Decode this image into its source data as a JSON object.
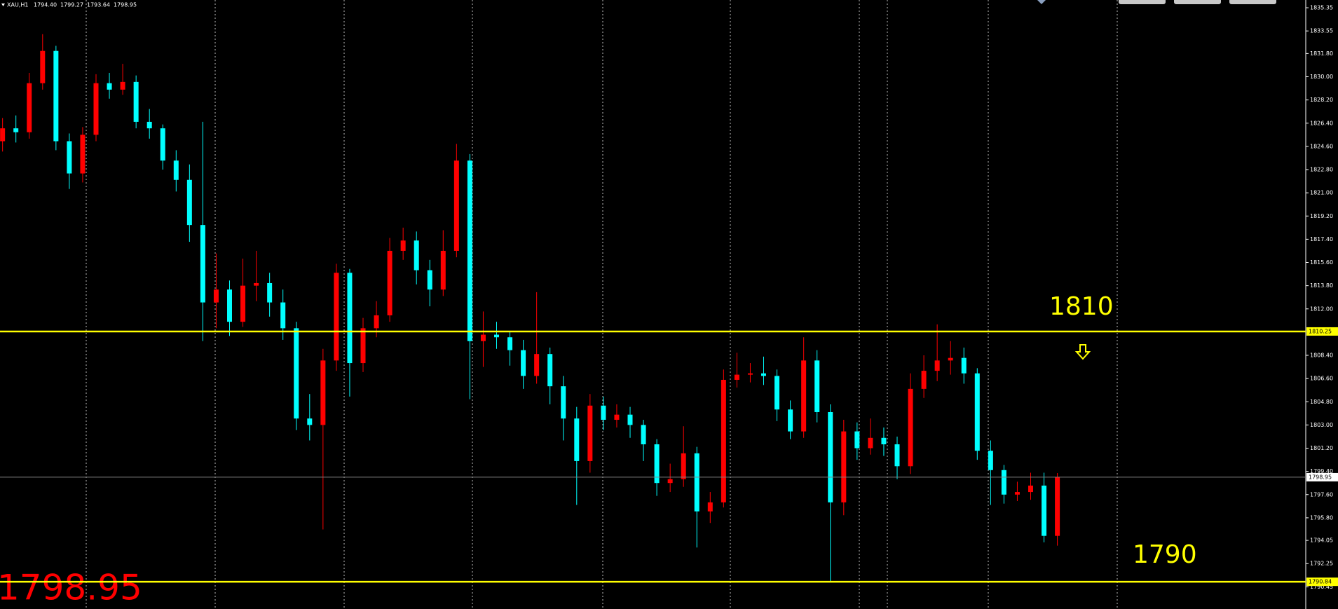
{
  "chart_data": {
    "type": "candlestick",
    "header": {
      "symbol": "XAU,H1",
      "open": "1794.40",
      "high": "1799.27",
      "low": "1793.64",
      "close": "1798.95"
    },
    "up_color": "#ff0000",
    "down_color": "#00ffff",
    "open": [
      1825.0,
      1826.0,
      1825.7,
      1829.5,
      1832.0,
      1825.0,
      1822.5,
      1825.5,
      1829.5,
      1829.0,
      1829.6,
      1826.5,
      1826.0,
      1823.5,
      1822.0,
      1818.5,
      1812.5,
      1813.5,
      1811.0,
      1813.8,
      1814.0,
      1812.5,
      1810.5,
      1803.5,
      1803.0,
      1808.0,
      1814.8,
      1807.8,
      1810.5,
      1811.5,
      1816.5,
      1817.3,
      1815.0,
      1813.5,
      1816.5,
      1823.5,
      1809.5,
      1810.0,
      1809.8,
      1808.8,
      1806.8,
      1808.5,
      1806.0,
      1803.5,
      1800.2,
      1804.5,
      1803.4,
      1803.8,
      1803.0,
      1801.5,
      1798.5,
      1798.8,
      1800.8,
      1796.3,
      1797.0,
      1806.5,
      1806.9,
      1807.0,
      1806.8,
      1804.2,
      1802.5,
      1808.0,
      1804.0,
      1797.0,
      1802.5,
      1801.2,
      1802.0,
      1801.5,
      1799.8,
      1805.8,
      1807.2,
      1808.0,
      1808.2,
      1807.0,
      1801.0,
      1799.5,
      1797.6,
      1797.8,
      1798.3,
      1794.4
    ],
    "high": [
      1826.8,
      1827.0,
      1830.3,
      1833.3,
      1832.4,
      1825.6,
      1826.1,
      1830.2,
      1830.3,
      1831.0,
      1830.1,
      1827.5,
      1826.3,
      1824.3,
      1823.2,
      1826.5,
      1816.3,
      1814.2,
      1815.9,
      1816.5,
      1814.8,
      1813.5,
      1811.0,
      1805.4,
      1808.9,
      1815.5,
      1815.1,
      1811.3,
      1812.6,
      1817.5,
      1818.3,
      1818.0,
      1815.8,
      1818.1,
      1824.8,
      1824.0,
      1811.8,
      1811.0,
      1810.3,
      1809.6,
      1813.3,
      1809.0,
      1806.8,
      1804.4,
      1805.4,
      1805.2,
      1804.6,
      1804.4,
      1803.4,
      1801.9,
      1800.0,
      1802.9,
      1801.3,
      1797.8,
      1807.3,
      1808.6,
      1807.8,
      1808.3,
      1807.3,
      1804.9,
      1809.8,
      1808.8,
      1804.6,
      1803.4,
      1803.2,
      1803.5,
      1802.8,
      1802.1,
      1807.0,
      1808.4,
      1810.8,
      1809.5,
      1809.0,
      1807.4,
      1801.8,
      1799.9,
      1798.6,
      1799.3,
      1799.3,
      1799.27
    ],
    "low": [
      1824.2,
      1824.9,
      1825.2,
      1829.0,
      1824.3,
      1821.3,
      1821.8,
      1825.0,
      1828.3,
      1828.6,
      1826.0,
      1825.2,
      1822.8,
      1821.1,
      1817.2,
      1809.5,
      1810.5,
      1809.9,
      1810.6,
      1812.6,
      1811.4,
      1809.6,
      1802.6,
      1801.8,
      1794.9,
      1807.2,
      1805.2,
      1807.1,
      1809.8,
      1811.0,
      1815.8,
      1813.9,
      1812.2,
      1813.0,
      1816.0,
      1805.0,
      1807.5,
      1808.9,
      1807.6,
      1805.8,
      1806.2,
      1804.6,
      1801.8,
      1796.8,
      1799.3,
      1802.6,
      1802.8,
      1802.0,
      1800.2,
      1797.5,
      1797.8,
      1798.2,
      1793.5,
      1795.4,
      1796.6,
      1805.9,
      1806.3,
      1806.1,
      1803.3,
      1801.9,
      1802.0,
      1803.2,
      1790.8,
      1796.0,
      1800.3,
      1800.7,
      1800.6,
      1798.8,
      1799.2,
      1805.1,
      1806.4,
      1806.9,
      1806.2,
      1800.3,
      1796.8,
      1796.9,
      1797.1,
      1797.2,
      1793.9,
      1793.64
    ],
    "close": [
      1826.0,
      1825.7,
      1829.5,
      1832.0,
      1825.0,
      1822.5,
      1825.5,
      1829.5,
      1829.0,
      1829.6,
      1826.5,
      1826.0,
      1823.5,
      1822.0,
      1818.5,
      1812.5,
      1813.5,
      1811.0,
      1813.8,
      1814.0,
      1812.5,
      1810.5,
      1803.5,
      1803.0,
      1808.0,
      1814.8,
      1807.8,
      1810.5,
      1811.5,
      1816.5,
      1817.3,
      1815.0,
      1813.5,
      1816.5,
      1823.5,
      1809.5,
      1810.0,
      1809.8,
      1808.8,
      1806.8,
      1808.5,
      1806.0,
      1803.5,
      1800.2,
      1804.5,
      1803.4,
      1803.8,
      1803.0,
      1801.5,
      1798.5,
      1798.8,
      1800.8,
      1796.3,
      1797.0,
      1806.5,
      1806.9,
      1807.0,
      1806.8,
      1804.2,
      1802.5,
      1808.0,
      1804.0,
      1797.0,
      1802.5,
      1801.2,
      1802.0,
      1801.5,
      1799.8,
      1805.8,
      1807.2,
      1808.0,
      1808.2,
      1807.0,
      1801.0,
      1799.5,
      1797.6,
      1797.8,
      1798.3,
      1794.4,
      1798.95
    ],
    "ylim": [
      1788.73,
      1835.95
    ],
    "yticks": [
      1835.35,
      1833.55,
      {
        "value": 1831.8,
        "label": "1831.80"
      },
      {
        "value": 1830,
        "label": "1830.00"
      },
      {
        "value": 1828.2,
        "label": "1828.20"
      },
      {
        "value": 1826.4,
        "label": "1826.40"
      },
      {
        "value": 1824.6,
        "label": "1824.60"
      },
      {
        "value": 1822.8,
        "label": "1822.80"
      },
      {
        "value": 1821,
        "label": "1821.00"
      },
      {
        "value": 1819.2,
        "label": "1819.20"
      },
      {
        "value": 1817.4,
        "label": "1817.40"
      },
      {
        "value": 1815.6,
        "label": "1815.60"
      },
      {
        "value": 1813.8,
        "label": "1813.80"
      },
      {
        "value": 1812,
        "label": "1812.00"
      },
      {
        "value": 1808.4,
        "label": "1808.40"
      },
      {
        "value": 1806.6,
        "label": "1806.60"
      },
      {
        "value": 1804.8,
        "label": "1804.80"
      },
      {
        "value": 1803,
        "label": "1803.00"
      },
      {
        "value": 1801.2,
        "label": "1801.20"
      },
      {
        "value": 1799.4,
        "label": "1799.40"
      },
      {
        "value": 1797.6,
        "label": "1797.60"
      },
      {
        "value": 1795.8,
        "label": "1795.80"
      },
      1794.05,
      1792.25,
      1790.45
    ],
    "levels": [
      {
        "value": 1810.25,
        "label": "1810.25",
        "color": "#ffff00"
      },
      {
        "value": 1798.95,
        "label": "1798.95",
        "color": "#808080"
      },
      {
        "value": 1790.84,
        "label": "1790.84",
        "color": "#ffff00"
      }
    ],
    "annotations": {
      "upper": "1810",
      "lower": "1790",
      "price": "1798.95"
    }
  }
}
